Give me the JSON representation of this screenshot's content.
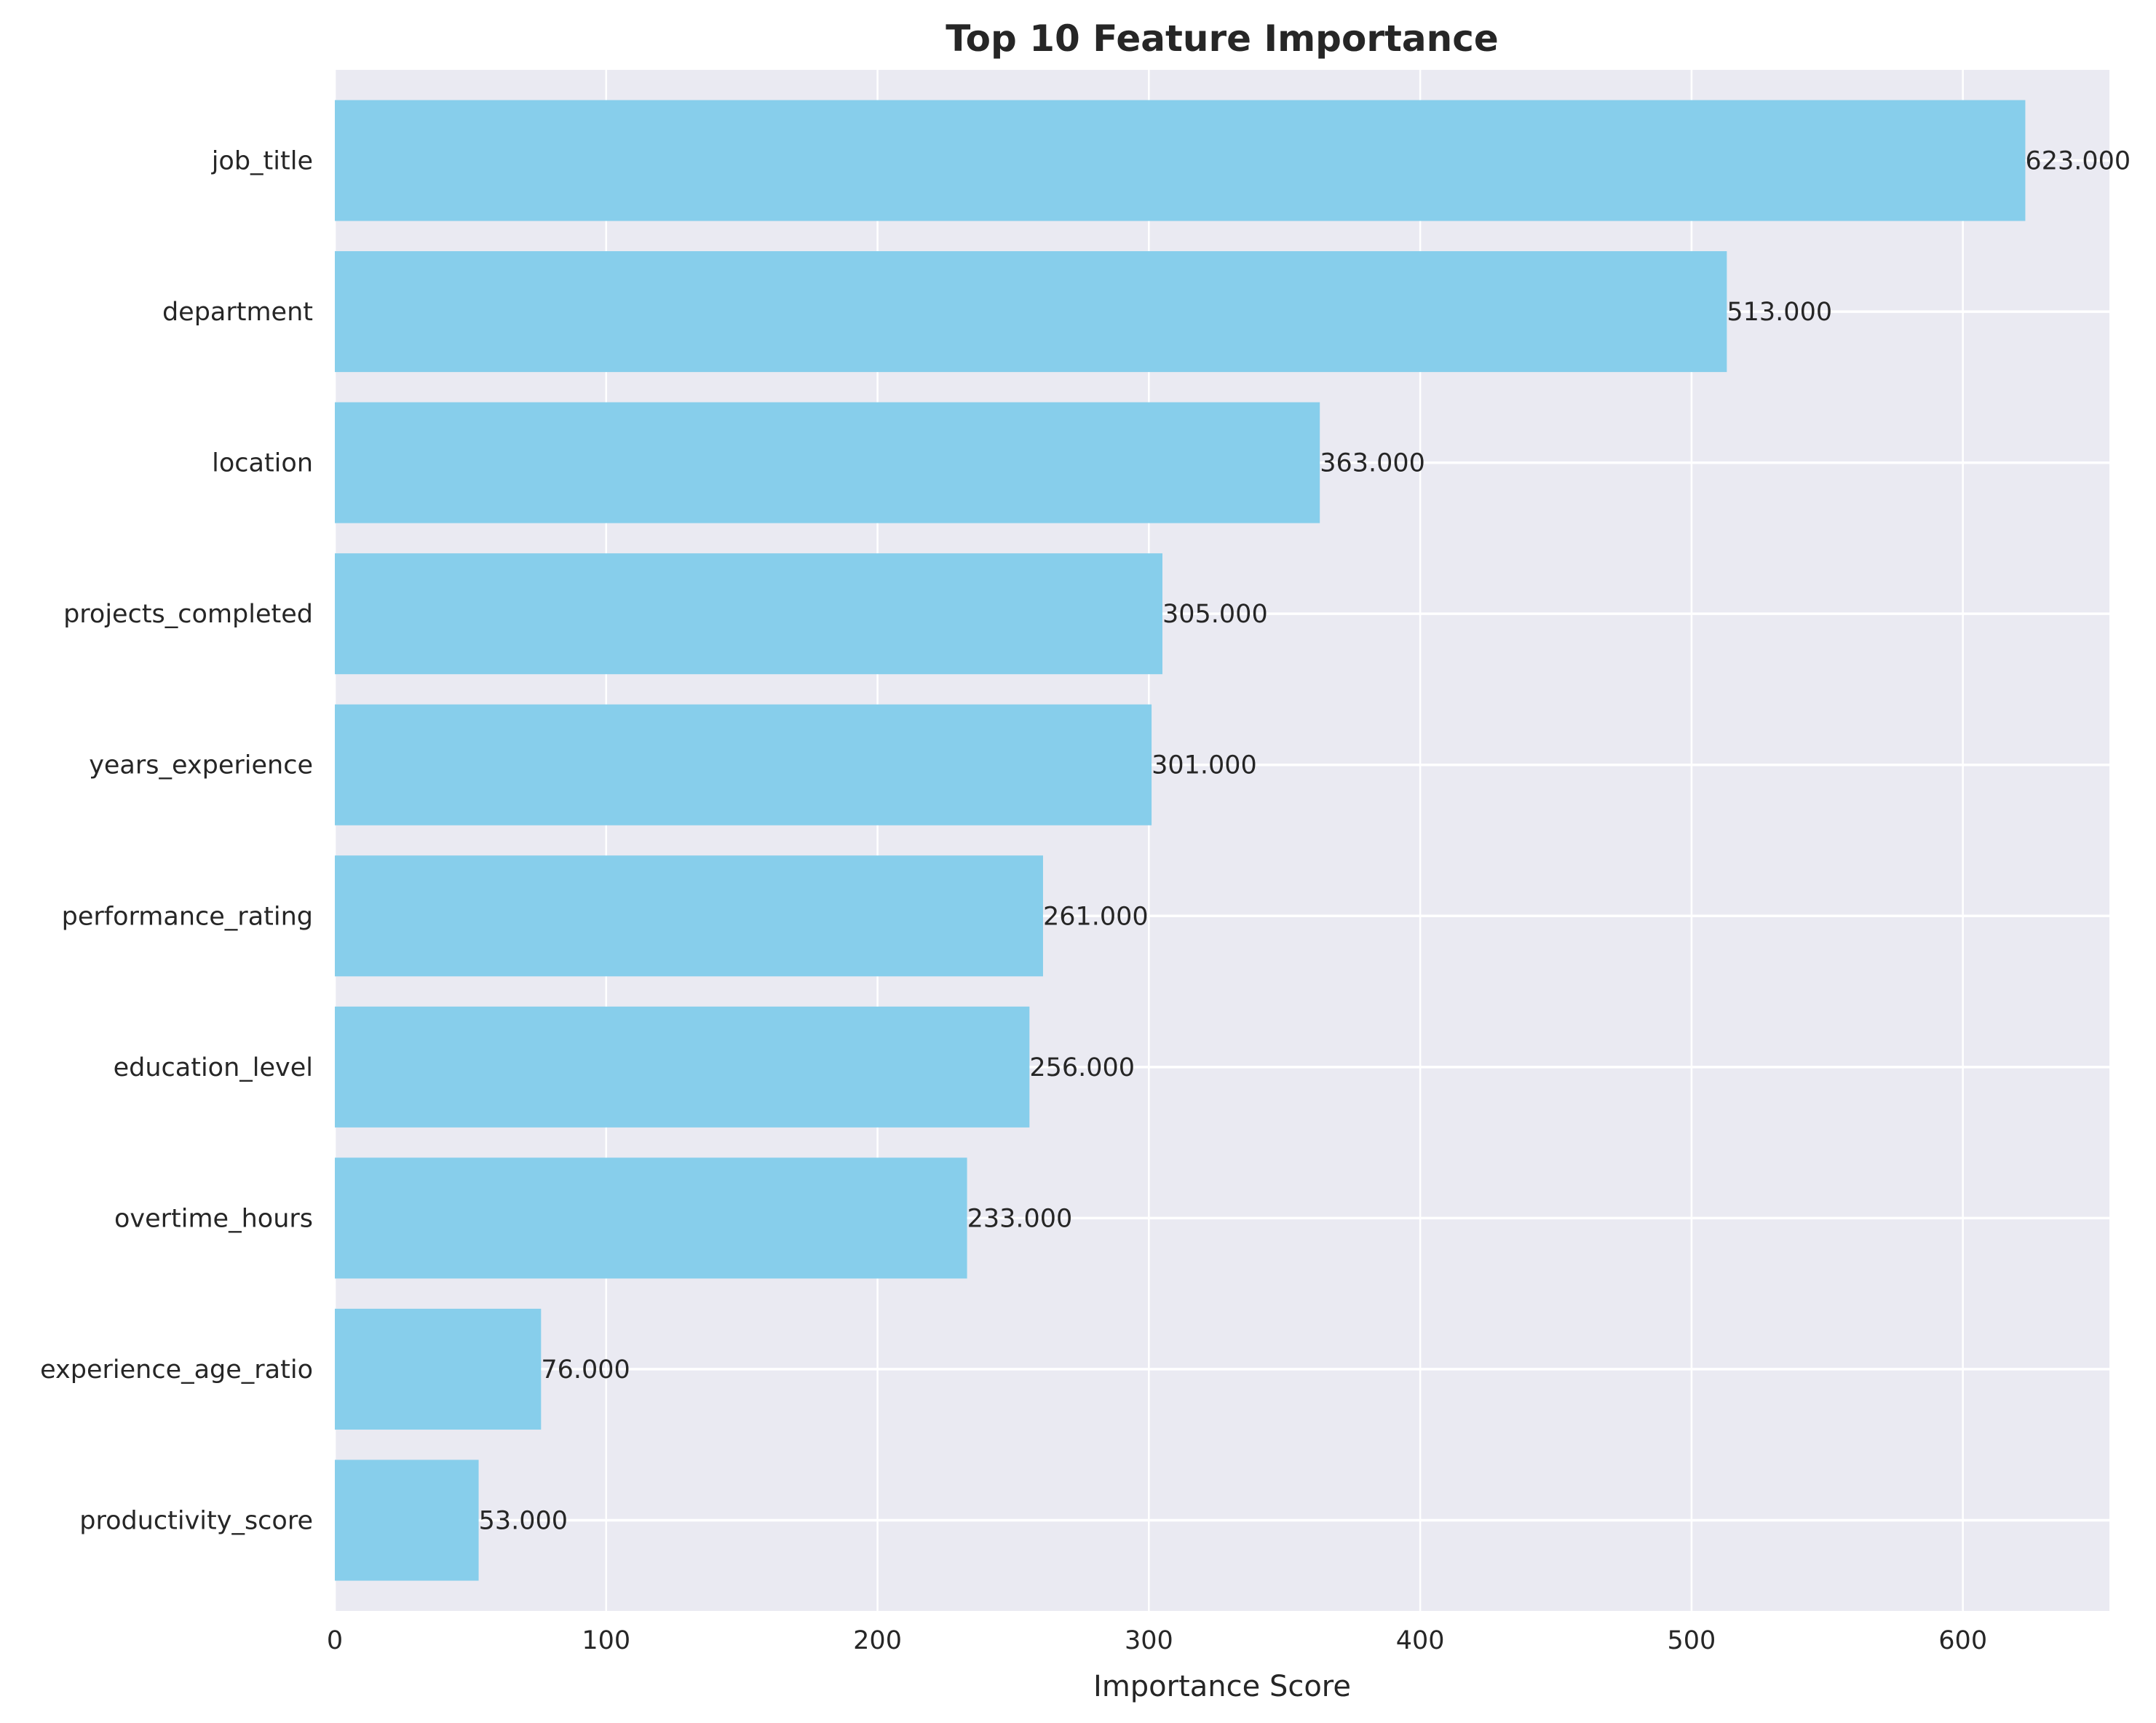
{
  "chart_data": {
    "type": "bar",
    "orientation": "horizontal",
    "title": "Top 10 Feature Importance",
    "xlabel": "Importance Score",
    "ylabel": "",
    "categories": [
      "job_title",
      "department",
      "location",
      "projects_completed",
      "years_experience",
      "performance_rating",
      "education_level",
      "overtime_hours",
      "experience_age_ratio",
      "productivity_score"
    ],
    "values": [
      623,
      513,
      363,
      305,
      301,
      261,
      256,
      233,
      76,
      53
    ],
    "value_labels": [
      "623.000",
      "513.000",
      "363.000",
      "305.000",
      "301.000",
      "261.000",
      "256.000",
      "233.000",
      "76.000",
      "53.000"
    ],
    "xlim": [
      0,
      654
    ],
    "xticks": [
      0,
      100,
      200,
      300,
      400,
      500,
      600
    ],
    "grid": true,
    "legend": "none",
    "colors": {
      "bar": "#87CEEB",
      "plot_background": "#EAEAF2",
      "grid": "#FFFFFF",
      "text": "#262626"
    }
  }
}
